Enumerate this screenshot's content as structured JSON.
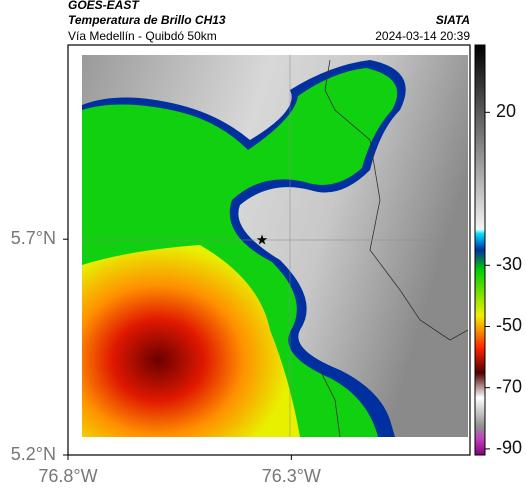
{
  "header": {
    "title": "GOES-EAST",
    "subtitle": "Temperatura de Brillo CH13",
    "region": "Vía Medellín - Quibdó 50km",
    "source": "SIATA",
    "datetime": "2024-03-14 20:39"
  },
  "map": {
    "xlim": [
      -76.8,
      -75.9
    ],
    "ylim": [
      5.2,
      6.15
    ],
    "xticks": [
      {
        "value": -76.8,
        "label": "76.8°W"
      },
      {
        "value": -76.3,
        "label": "76.3°W"
      }
    ],
    "yticks": [
      {
        "value": 5.2,
        "label": "5.2°N"
      },
      {
        "value": 5.7,
        "label": "5.7°N"
      }
    ]
  },
  "colorbar": {
    "lim": [
      -92,
      42
    ],
    "ticks": [
      20,
      -30,
      -50,
      -70,
      -90
    ]
  }
}
